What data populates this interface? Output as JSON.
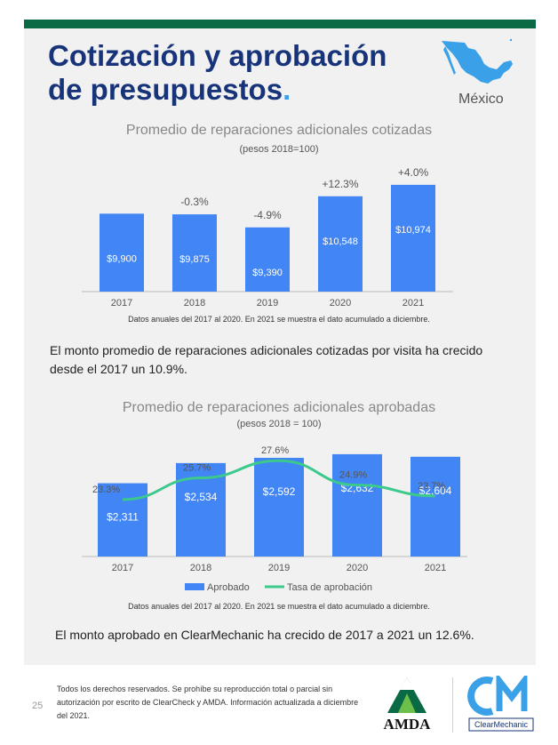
{
  "header": {
    "title_line1": "Cotización y aprobación",
    "title_line2": "de presupuestos",
    "title_dot": ".",
    "country": "México"
  },
  "colors": {
    "bar": "#4285f4",
    "line": "#3cc98c",
    "title": "#17337a",
    "bar_green": "#0b6a46"
  },
  "chart1": {
    "title": "Promedio de reparaciones adicionales cotizadas",
    "subtitle": "(pesos 2018=100)",
    "note": "Datos anuales del 2017 al 2020. En 2021 se muestra el dato acumulado a diciembre."
  },
  "paragraph1": "El monto promedio de reparaciones adicionales cotizadas por visita ha crecido desde el 2017 un 10.9%.",
  "chart2": {
    "title": "Promedio de reparaciones adicionales aprobadas",
    "subtitle": "(pesos 2018 = 100)",
    "note": "Datos anuales del 2017 al 2020. En 2021 se muestra el dato acumulado a diciembre.",
    "legend_bar": "Aprobado",
    "legend_line": "Tasa de aprobación"
  },
  "paragraph2": "El monto aprobado en ClearMechanic ha crecido de 2017 a 2021 un 12.6%.",
  "footer": {
    "page_number": "25",
    "text": "Todos los derechos reservados. Se prohíbe su reproducción total o parcial sin autorización por escrito de ClearCheck y AMDA. Información actualizada a diciembre del 2021.",
    "amda_logo_text": "AMDA",
    "cm_logo_text": "ClearMechanic"
  },
  "chart_data": [
    {
      "type": "bar",
      "title": "Promedio de reparaciones adicionales cotizadas",
      "subtitle": "(pesos 2018=100)",
      "categories": [
        "2017",
        "2018",
        "2019",
        "2020",
        "2021"
      ],
      "values": [
        9900,
        9875,
        9390,
        10548,
        10974
      ],
      "value_labels": [
        "$9,900",
        "$9,875",
        "$9,390",
        "$10,548",
        "$10,974"
      ],
      "change_labels": [
        "",
        "-0.3%",
        "-4.9%",
        "+12.3%",
        "+4.0%"
      ],
      "ylim": [
        7000,
        11500
      ]
    },
    {
      "type": "bar",
      "title": "Promedio de reparaciones adicionales aprobadas",
      "subtitle": "(pesos 2018 = 100)",
      "categories": [
        "2017",
        "2018",
        "2019",
        "2020",
        "2021"
      ],
      "series": [
        {
          "name": "Aprobado",
          "type": "bar",
          "values": [
            2311,
            2534,
            2592,
            2632,
            2604
          ],
          "labels": [
            "$2,311",
            "$2,534",
            "$2,592",
            "$2,632",
            "$2,604"
          ]
        },
        {
          "name": "Tasa de aprobación",
          "type": "line",
          "values": [
            23.3,
            25.7,
            27.6,
            24.9,
            23.7
          ],
          "labels": [
            "23.3%",
            "25.7%",
            "27.6%",
            "24.9%",
            "23.7%"
          ]
        }
      ],
      "ylim": [
        1500,
        2700
      ],
      "y2lim": [
        17,
        29
      ],
      "legend": "bottom"
    }
  ]
}
